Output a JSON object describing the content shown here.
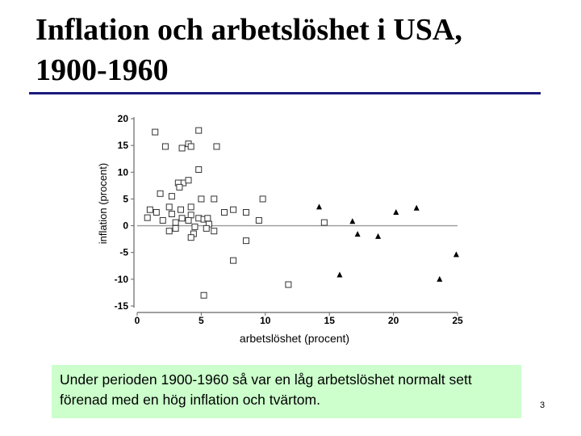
{
  "slide": {
    "title_line1": "Inflation och arbetslöshet i USA,",
    "title_line2": "1900-1960",
    "caption": "Under perioden 1900-1960 så var en låg arbetslöshet normalt sett förenad med en hög inflation och tvärtom.",
    "page_number": "3"
  },
  "colors": {
    "title_rule": "#1a1a7a",
    "caption_background": "#ccffcc",
    "axis": "#666666",
    "zero_line": "#999999"
  },
  "chart_data": {
    "type": "scatter",
    "title": "",
    "xlabel": "arbetslöshet (procent)",
    "ylabel": "inflation (procent)",
    "xlim": [
      0,
      25
    ],
    "ylim": [
      -15,
      20
    ],
    "xticks": [
      0,
      5,
      10,
      15,
      20,
      25
    ],
    "yticks": [
      20,
      15,
      10,
      5,
      0,
      -5,
      -10,
      -15
    ],
    "zero_line": true,
    "series": [
      {
        "marker": "open-square",
        "points": [
          [
            1.4,
            17.5
          ],
          [
            4.8,
            17.8
          ],
          [
            2.2,
            14.8
          ],
          [
            3.5,
            14.5
          ],
          [
            4.0,
            15.3
          ],
          [
            4.2,
            14.8
          ],
          [
            6.2,
            14.8
          ],
          [
            3.6,
            8.0
          ],
          [
            4.0,
            8.5
          ],
          [
            4.8,
            10.5
          ],
          [
            3.2,
            8.0
          ],
          [
            3.3,
            7.2
          ],
          [
            2.7,
            5.5
          ],
          [
            1.8,
            6.0
          ],
          [
            2.5,
            3.5
          ],
          [
            3.4,
            3.0
          ],
          [
            4.2,
            3.5
          ],
          [
            4.2,
            2.0
          ],
          [
            5.0,
            5.0
          ],
          [
            6.0,
            5.0
          ],
          [
            1.0,
            3.0
          ],
          [
            1.5,
            2.5
          ],
          [
            2.0,
            1.0
          ],
          [
            0.8,
            1.5
          ],
          [
            2.7,
            2.2
          ],
          [
            3.0,
            0.6
          ],
          [
            3.5,
            1.4
          ],
          [
            4.0,
            1.0
          ],
          [
            4.8,
            1.4
          ],
          [
            5.2,
            1.2
          ],
          [
            5.5,
            1.4
          ],
          [
            5.6,
            0.3
          ],
          [
            2.5,
            -1.0
          ],
          [
            3.0,
            -0.5
          ],
          [
            4.5,
            -0.2
          ],
          [
            4.4,
            -1.5
          ],
          [
            4.2,
            -2.2
          ],
          [
            5.4,
            -0.5
          ],
          [
            6.0,
            -1.0
          ],
          [
            6.8,
            2.5
          ],
          [
            7.5,
            3.0
          ],
          [
            8.5,
            2.5
          ],
          [
            9.5,
            1.0
          ],
          [
            9.8,
            5.0
          ],
          [
            14.6,
            0.6
          ],
          [
            8.5,
            -2.8
          ],
          [
            7.5,
            -6.5
          ],
          [
            11.8,
            -11.0
          ],
          [
            5.2,
            -13.0
          ]
        ]
      },
      {
        "marker": "filled-triangle",
        "points": [
          [
            14.2,
            3.5
          ],
          [
            16.8,
            0.8
          ],
          [
            17.2,
            -1.6
          ],
          [
            18.8,
            -2.0
          ],
          [
            20.2,
            2.5
          ],
          [
            21.8,
            3.3
          ],
          [
            24.9,
            -5.4
          ],
          [
            23.6,
            -10.0
          ],
          [
            15.8,
            -9.2
          ]
        ]
      }
    ]
  }
}
